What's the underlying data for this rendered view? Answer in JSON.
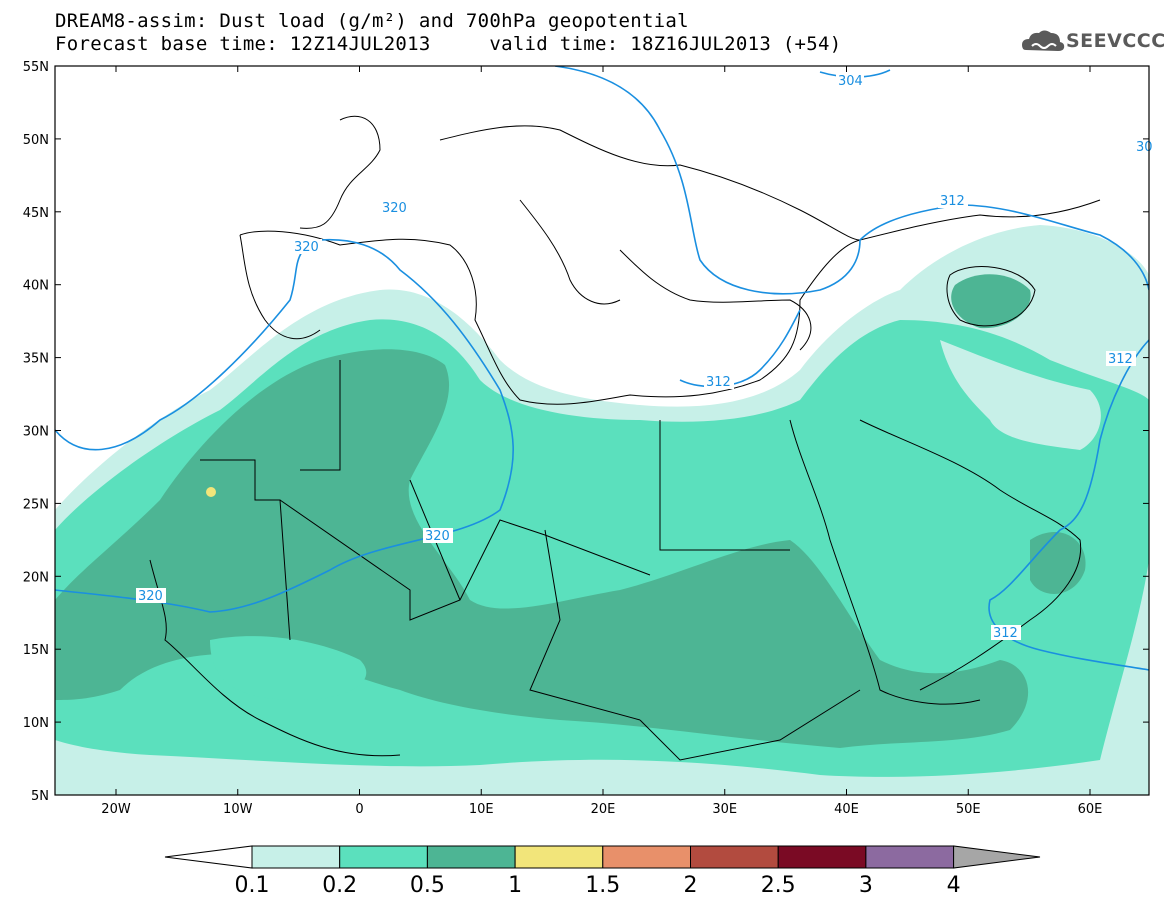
{
  "title": {
    "line1": "DREAM8-assim: Dust load (g/m²) and 700hPa geopotential",
    "line2": "Forecast base time: 12Z14JUL2013     valid time: 18Z16JUL2013 (+54)"
  },
  "logo": {
    "text": "SEEVCCC",
    "icon": "cloud-icon"
  },
  "axes": {
    "lat_labels": [
      "55N",
      "50N",
      "45N",
      "40N",
      "35N",
      "30N",
      "25N",
      "20N",
      "15N",
      "10N",
      "5N"
    ],
    "lon_labels": [
      "20W",
      "10W",
      "0",
      "10E",
      "20E",
      "30E",
      "40E",
      "50E",
      "60E"
    ]
  },
  "contour_labels": [
    "304",
    "30",
    "312",
    "320",
    "320",
    "312",
    "312",
    "320",
    "320",
    "312"
  ],
  "colorbar": {
    "labels": [
      "0.1",
      "0.2",
      "0.5",
      "1",
      "1.5",
      "2",
      "2.5",
      "3",
      "4"
    ],
    "colors": [
      "#ffffff",
      "#c7f0e8",
      "#5be0bd",
      "#4db594",
      "#f2e57a",
      "#e8906a",
      "#b24b3f",
      "#7a0a24",
      "#8c6aa0",
      "#a6a6a6"
    ]
  },
  "colors": {
    "contour": "#1a8fe0",
    "dust_01": "#c7f0e8",
    "dust_02": "#5be0bd",
    "dust_05": "#4db594",
    "dust_1": "#f2e57a"
  }
}
